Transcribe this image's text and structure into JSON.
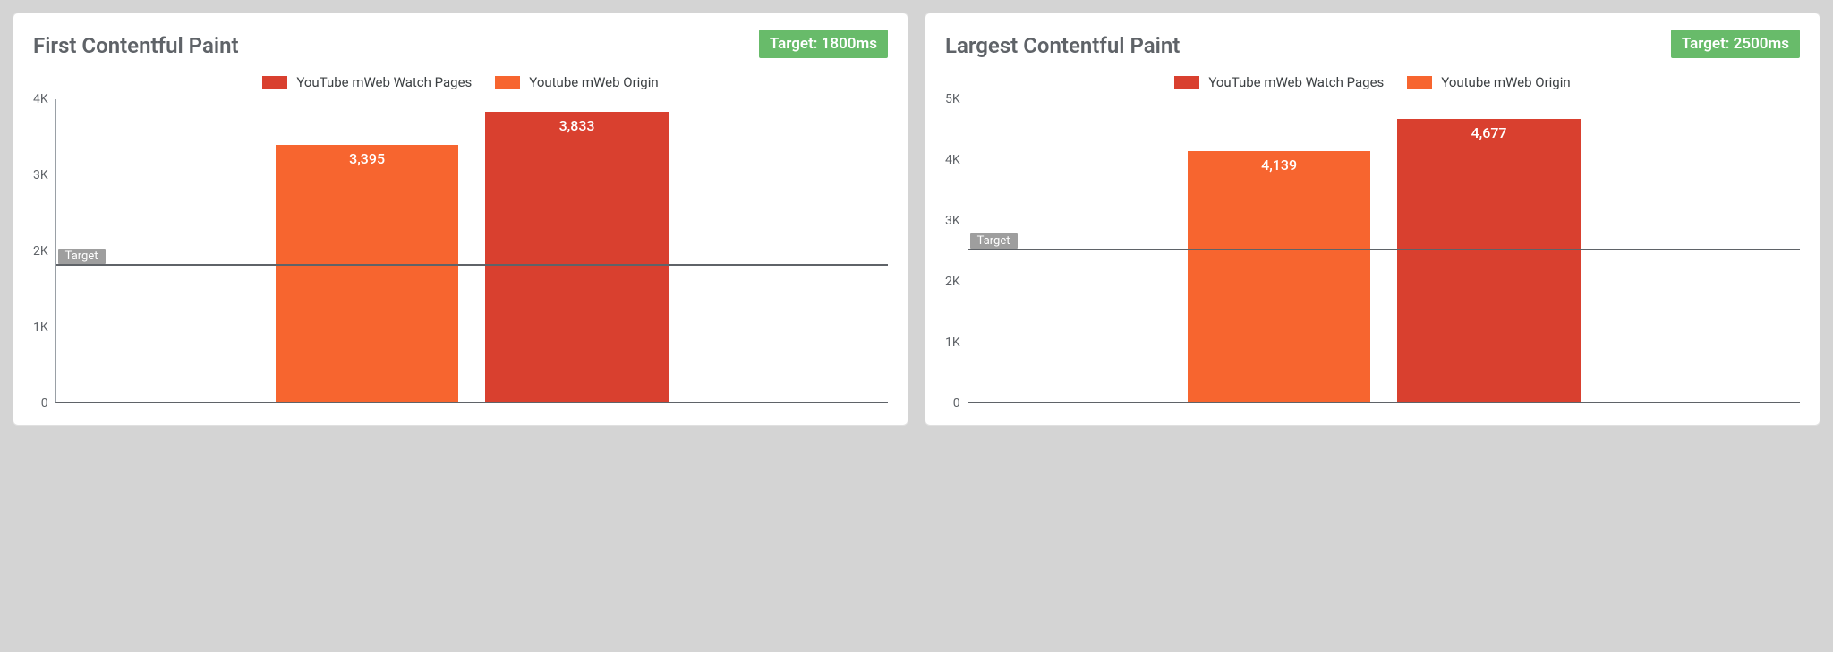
{
  "page_background": "#d4d4d4",
  "panel_background": "#ffffff",
  "panel_border_color": "#e0e0e0",
  "axis_text_color": "#5f6368",
  "charts": [
    {
      "title": "First Contentful Paint",
      "target_badge": "Target: 1800ms",
      "target_badge_bg": "#68bb6a",
      "target_value_ms": 1800,
      "target_chip_label": "Target",
      "ymax": 4000,
      "ytick_step": 1000,
      "ytick_labels": [
        "4K",
        "3K",
        "2K",
        "1K",
        "0"
      ],
      "series": [
        {
          "label": "YouTube mWeb Watch Pages",
          "color": "#d9402f"
        },
        {
          "label": "Youtube mWeb Origin",
          "color": "#f7652f"
        }
      ],
      "bars": [
        {
          "value": 3395,
          "display": "3,395",
          "color": "#f7652f"
        },
        {
          "value": 3833,
          "display": "3,833",
          "color": "#d9402f"
        }
      ]
    },
    {
      "title": "Largest Contentful Paint",
      "target_badge": "Target: 2500ms",
      "target_badge_bg": "#68bb6a",
      "target_value_ms": 2500,
      "target_chip_label": "Target",
      "ymax": 5000,
      "ytick_step": 1000,
      "ytick_labels": [
        "5K",
        "4K",
        "3K",
        "2K",
        "1K",
        "0"
      ],
      "series": [
        {
          "label": "YouTube mWeb Watch Pages",
          "color": "#d9402f"
        },
        {
          "label": "Youtube mWeb Origin",
          "color": "#f7652f"
        }
      ],
      "bars": [
        {
          "value": 4139,
          "display": "4,139",
          "color": "#f7652f"
        },
        {
          "value": 4677,
          "display": "4,677",
          "color": "#d9402f"
        }
      ]
    }
  ]
}
